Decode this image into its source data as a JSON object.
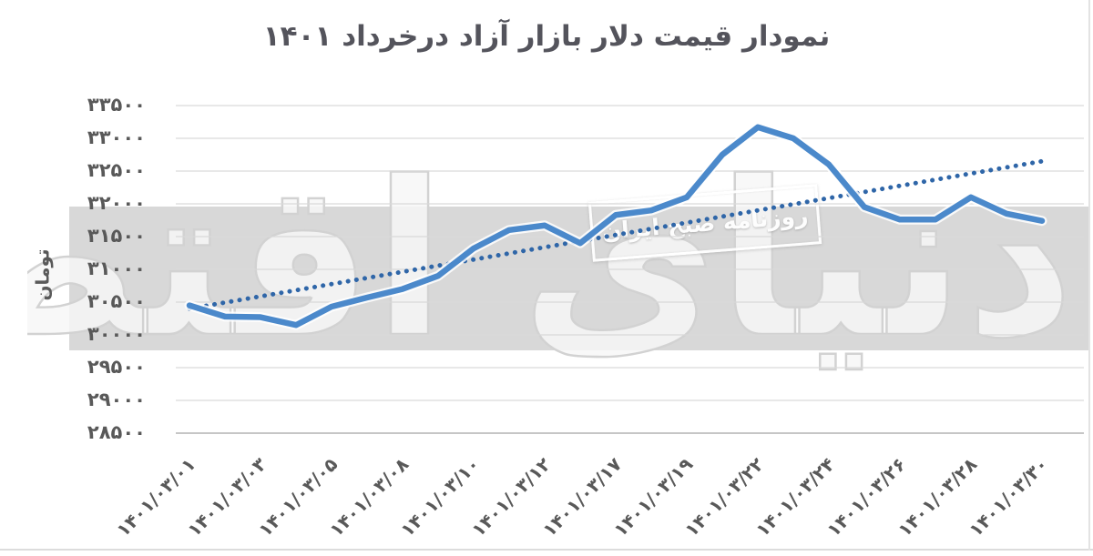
{
  "watermark": {
    "logo_text": "دنیای اقتصاد",
    "stamp_text": "روزنامه صبح ایران"
  },
  "chart_data": {
    "type": "line",
    "title": "نمودار قیمت دلار بازار آزاد درخرداد ۱۴۰۱",
    "ylabel": "تومان",
    "ylim": [
      28500,
      33500
    ],
    "ytick_step": 500,
    "grid": "horizontal",
    "legend": "none",
    "y_tick_values": [
      33500,
      33000,
      32500,
      32000,
      31500,
      31000,
      30500,
      30000,
      29500,
      29000,
      28500
    ],
    "y_tick_labels": [
      "۳۳۵۰۰",
      "۳۳۰۰۰",
      "۳۲۵۰۰",
      "۳۲۰۰۰",
      "۳۱۵۰۰",
      "۳۱۰۰۰",
      "۳۰۵۰۰",
      "۳۰۰۰۰",
      "۲۹۵۰۰",
      "۲۹۰۰۰",
      "۲۸۵۰۰"
    ],
    "x_tick_labels": [
      "۱۴۰۱/۰۳/۰۱",
      "۱۴۰۱/۰۳/۰۳",
      "۱۴۰۱/۰۳/۰۵",
      "۱۴۰۱/۰۳/۰۸",
      "۱۴۰۱/۰۳/۱۰",
      "۱۴۰۱/۰۳/۱۲",
      "۱۴۰۱/۰۳/۱۷",
      "۱۴۰۱/۰۳/۱۹",
      "۱۴۰۱/۰۳/۲۲",
      "۱۴۰۱/۰۳/۲۴",
      "۱۴۰۱/۰۳/۲۶",
      "۱۴۰۱/۰۳/۲۸",
      "۱۴۰۱/۰۳/۳۰"
    ],
    "x_label_interval": 2,
    "series": [
      {
        "name": "free-market-dollar-price",
        "style": "solid",
        "color": "#4b89cb",
        "values": [
          30450,
          30280,
          30270,
          30150,
          30430,
          30570,
          30700,
          30900,
          31320,
          31600,
          31670,
          31400,
          31830,
          31900,
          32100,
          32750,
          33170,
          33000,
          32600,
          31950,
          31760,
          31760,
          32100,
          31850,
          31740
        ]
      },
      {
        "name": "linear-trendline",
        "style": "dotted",
        "color": "#2f66a8",
        "endpoint_values": [
          30400,
          32650
        ]
      }
    ]
  }
}
